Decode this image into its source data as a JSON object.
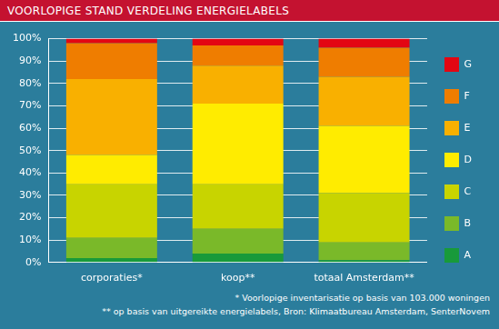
{
  "chart_data": {
    "type": "bar",
    "title": "VOORLOPIGE STAND VERDELING ENERGIELABELS",
    "annotations": [
      "* Voorlopige inventarisatie op basis van 103.000 woningen",
      "** op basis van uitgereikte energielabels, Bron: Klimaatbureau Amsterdam, SenterNovem"
    ],
    "categories": [
      "corporaties*",
      "koop**",
      "totaal Amsterdam**"
    ],
    "series": [
      {
        "name": "A",
        "color": "#189a3a",
        "values": [
          2,
          4,
          1
        ]
      },
      {
        "name": "B",
        "color": "#7ab929",
        "values": [
          9,
          11,
          8
        ]
      },
      {
        "name": "C",
        "color": "#c8d400",
        "values": [
          24,
          20,
          22
        ]
      },
      {
        "name": "D",
        "color": "#ffec00",
        "values": [
          13,
          36,
          30
        ]
      },
      {
        "name": "E",
        "color": "#f9b000",
        "values": [
          34,
          17,
          22
        ]
      },
      {
        "name": "F",
        "color": "#ef7d00",
        "values": [
          16,
          9,
          13
        ]
      },
      {
        "name": "G",
        "color": "#e30613",
        "values": [
          2,
          3,
          4
        ]
      }
    ],
    "stacked": true,
    "ylim": [
      0,
      100
    ],
    "yticks": [
      {
        "value": 0,
        "label": "0%"
      },
      {
        "value": 10,
        "label": "10%"
      },
      {
        "value": 20,
        "label": "20%"
      },
      {
        "value": 30,
        "label": "30%"
      },
      {
        "value": 40,
        "label": "40%"
      },
      {
        "value": 50,
        "label": "50%"
      },
      {
        "value": 60,
        "label": "60%"
      },
      {
        "value": 70,
        "label": "70%"
      },
      {
        "value": 80,
        "label": "80%"
      },
      {
        "value": 90,
        "label": "90%"
      },
      {
        "value": 100,
        "label": "100%"
      }
    ],
    "grid": true,
    "legend": "right"
  }
}
